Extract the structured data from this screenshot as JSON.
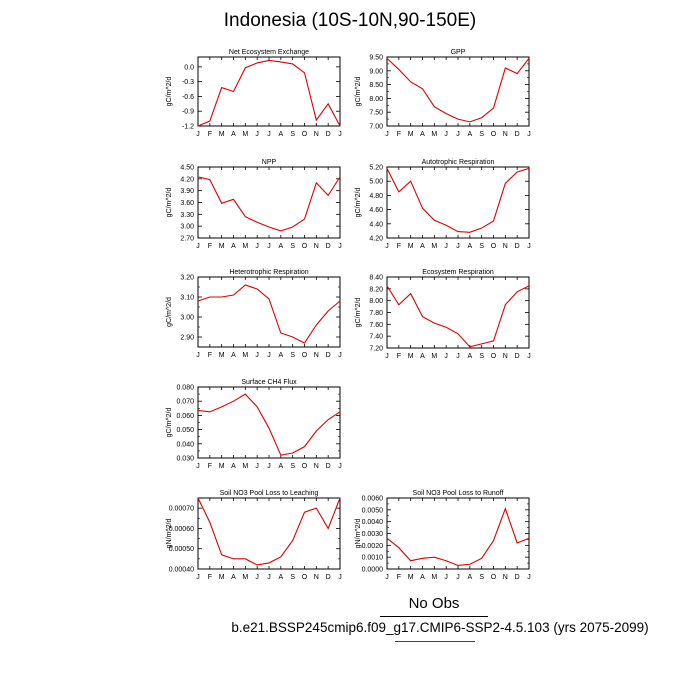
{
  "figure": {
    "title": "Indonesia (10S-10N,90-150E)",
    "legend_obs_label": "No Obs",
    "case_label": "b.e21.BSSP245cmip6.f09_g17.CMIP6-SSP2-4.5.103 (yrs 2075-2099)",
    "line_color": "#e00000",
    "obs_line_color": "#000000"
  },
  "chart_data": [
    {
      "type": "line",
      "title": "Net Ecosystem Exchange",
      "ylabel": "gC/m^2/d",
      "categories": [
        "J",
        "F",
        "M",
        "A",
        "M",
        "J",
        "J",
        "A",
        "S",
        "O",
        "N",
        "D",
        "J"
      ],
      "ylim": [
        -1.2,
        0.2
      ],
      "yticks": [
        -1.2,
        -0.9,
        -0.6,
        -0.3,
        0.0
      ],
      "ytick_labels": [
        "-1.2",
        "-0.9",
        "-0.6",
        "-0.3",
        "0.0"
      ],
      "series": [
        {
          "values": [
            -1.2,
            -1.1,
            -0.42,
            -0.5,
            -0.02,
            0.08,
            0.13,
            0.1,
            0.06,
            -0.12,
            -1.08,
            -0.75,
            -1.2
          ]
        }
      ]
    },
    {
      "type": "line",
      "title": "GPP",
      "ylabel": "gC/m^2/d",
      "categories": [
        "J",
        "F",
        "M",
        "A",
        "M",
        "J",
        "J",
        "A",
        "S",
        "O",
        "N",
        "D",
        "J"
      ],
      "ylim": [
        7.0,
        9.5
      ],
      "yticks": [
        7.0,
        7.5,
        8.0,
        8.5,
        9.0,
        9.5
      ],
      "minor_yticks": [
        7.25,
        7.75,
        8.25,
        8.75,
        9.25
      ],
      "ytick_labels": [
        "7.00",
        "7.50",
        "8.00",
        "8.50",
        "9.00",
        "9.50"
      ],
      "series": [
        {
          "values": [
            9.45,
            9.05,
            8.6,
            8.35,
            7.7,
            7.45,
            7.25,
            7.15,
            7.3,
            7.65,
            9.1,
            8.9,
            9.45
          ]
        }
      ]
    },
    {
      "type": "line",
      "title": "NPP",
      "ylabel": "gC/m^2/d",
      "categories": [
        "J",
        "F",
        "M",
        "A",
        "M",
        "J",
        "J",
        "A",
        "S",
        "O",
        "N",
        "D",
        "J"
      ],
      "ylim": [
        2.7,
        4.5
      ],
      "yticks": [
        2.7,
        3.0,
        3.3,
        3.6,
        3.9,
        4.2,
        4.5
      ],
      "ytick_labels": [
        "2.70",
        "3.00",
        "3.30",
        "3.60",
        "3.90",
        "4.20",
        "4.50"
      ],
      "series": [
        {
          "values": [
            4.25,
            4.18,
            3.58,
            3.68,
            3.24,
            3.1,
            2.98,
            2.88,
            2.98,
            3.18,
            4.1,
            3.78,
            4.25
          ]
        }
      ]
    },
    {
      "type": "line",
      "title": "Autotrophic Respiration",
      "ylabel": "gC/m^2/d",
      "categories": [
        "J",
        "F",
        "M",
        "A",
        "M",
        "J",
        "J",
        "A",
        "S",
        "O",
        "N",
        "D",
        "J"
      ],
      "ylim": [
        4.2,
        5.2
      ],
      "yticks": [
        4.2,
        4.4,
        4.6,
        4.8,
        5.0,
        5.2
      ],
      "ytick_labels": [
        "4.20",
        "4.40",
        "4.60",
        "4.80",
        "5.00",
        "5.20"
      ],
      "series": [
        {
          "values": [
            5.18,
            4.85,
            5.0,
            4.62,
            4.45,
            4.38,
            4.29,
            4.28,
            4.34,
            4.44,
            4.97,
            5.13,
            5.18
          ]
        }
      ]
    },
    {
      "type": "line",
      "title": "Heterotrophic Respiration",
      "ylabel": "gC/m^2/d",
      "categories": [
        "J",
        "F",
        "M",
        "A",
        "M",
        "J",
        "J",
        "A",
        "S",
        "O",
        "N",
        "D",
        "J"
      ],
      "ylim": [
        2.85,
        3.2
      ],
      "yticks": [
        2.9,
        3.0,
        3.1,
        3.2
      ],
      "minor_yticks": [
        2.95,
        3.05,
        3.15
      ],
      "ytick_labels": [
        "2.90",
        "3.00",
        "3.10",
        "3.20"
      ],
      "series": [
        {
          "values": [
            3.08,
            3.1,
            3.1,
            3.11,
            3.16,
            3.14,
            3.09,
            2.92,
            2.9,
            2.87,
            2.96,
            3.03,
            3.08
          ]
        }
      ]
    },
    {
      "type": "line",
      "title": "Ecosystem Respiration",
      "ylabel": "gC/m^2/d",
      "categories": [
        "J",
        "F",
        "M",
        "A",
        "M",
        "J",
        "J",
        "A",
        "S",
        "O",
        "N",
        "D",
        "J"
      ],
      "ylim": [
        7.2,
        8.4
      ],
      "yticks": [
        7.2,
        7.4,
        7.6,
        7.8,
        8.0,
        8.2,
        8.4
      ],
      "ytick_labels": [
        "7.20",
        "7.40",
        "7.60",
        "7.80",
        "8.00",
        "8.20",
        "8.40"
      ],
      "series": [
        {
          "values": [
            8.25,
            7.93,
            8.12,
            7.73,
            7.62,
            7.55,
            7.44,
            7.22,
            7.27,
            7.32,
            7.93,
            8.15,
            8.25
          ]
        }
      ]
    },
    {
      "type": "line",
      "title": "Surface CH4 Flux",
      "ylabel": "gC/m^2/d",
      "categories": [
        "J",
        "F",
        "M",
        "A",
        "M",
        "J",
        "J",
        "A",
        "S",
        "O",
        "N",
        "D",
        "J"
      ],
      "ylim": [
        0.03,
        0.08
      ],
      "yticks": [
        0.03,
        0.04,
        0.05,
        0.06,
        0.07,
        0.08
      ],
      "minor_yticks": [
        0.035,
        0.045,
        0.055,
        0.065,
        0.075
      ],
      "ytick_labels": [
        "0.030",
        "0.040",
        "0.050",
        "0.060",
        "0.070",
        "0.080"
      ],
      "series": [
        {
          "values": [
            0.0635,
            0.0625,
            0.066,
            0.07,
            0.075,
            0.066,
            0.051,
            0.032,
            0.0335,
            0.038,
            0.049,
            0.057,
            0.0625
          ]
        }
      ]
    },
    {
      "type": "line",
      "title": "Soil NO3 Pool Loss to Leaching",
      "ylabel": "gN/m^2/d",
      "categories": [
        "J",
        "F",
        "M",
        "A",
        "M",
        "J",
        "J",
        "A",
        "S",
        "O",
        "N",
        "D",
        "J"
      ],
      "ylim": [
        0.0004,
        0.00075
      ],
      "yticks": [
        0.0004,
        0.0005,
        0.0006,
        0.0007
      ],
      "minor_yticks": [
        0.00045,
        0.00055,
        0.00065,
        0.00075
      ],
      "ytick_labels": [
        "0.00040",
        "0.00050",
        "0.00060",
        "0.00070"
      ],
      "series": [
        {
          "values": [
            0.00075,
            0.00063,
            0.00047,
            0.00045,
            0.00045,
            0.00042,
            0.00043,
            0.00046,
            0.00054,
            0.00068,
            0.0007,
            0.0006,
            0.00075
          ]
        }
      ]
    },
    {
      "type": "line",
      "title": "Soil NO3 Pool Loss to Runoff",
      "ylabel": "gN/m^2/d",
      "categories": [
        "J",
        "F",
        "M",
        "A",
        "M",
        "J",
        "J",
        "A",
        "S",
        "O",
        "N",
        "D",
        "J"
      ],
      "ylim": [
        0.0,
        0.006
      ],
      "yticks": [
        0.0,
        0.001,
        0.002,
        0.003,
        0.004,
        0.005,
        0.006
      ],
      "minor_yticks": [
        0.0005,
        0.0015,
        0.0025,
        0.0035,
        0.0045,
        0.0055
      ],
      "ytick_labels": [
        "0.0000",
        "0.0010",
        "0.0020",
        "0.0030",
        "0.0040",
        "0.0050",
        "0.0060"
      ],
      "series": [
        {
          "values": [
            0.0026,
            0.0018,
            0.0007,
            0.0009,
            0.001,
            0.0007,
            0.0003,
            0.0004,
            0.0009,
            0.0024,
            0.0051,
            0.0022,
            0.0026
          ]
        }
      ]
    }
  ]
}
